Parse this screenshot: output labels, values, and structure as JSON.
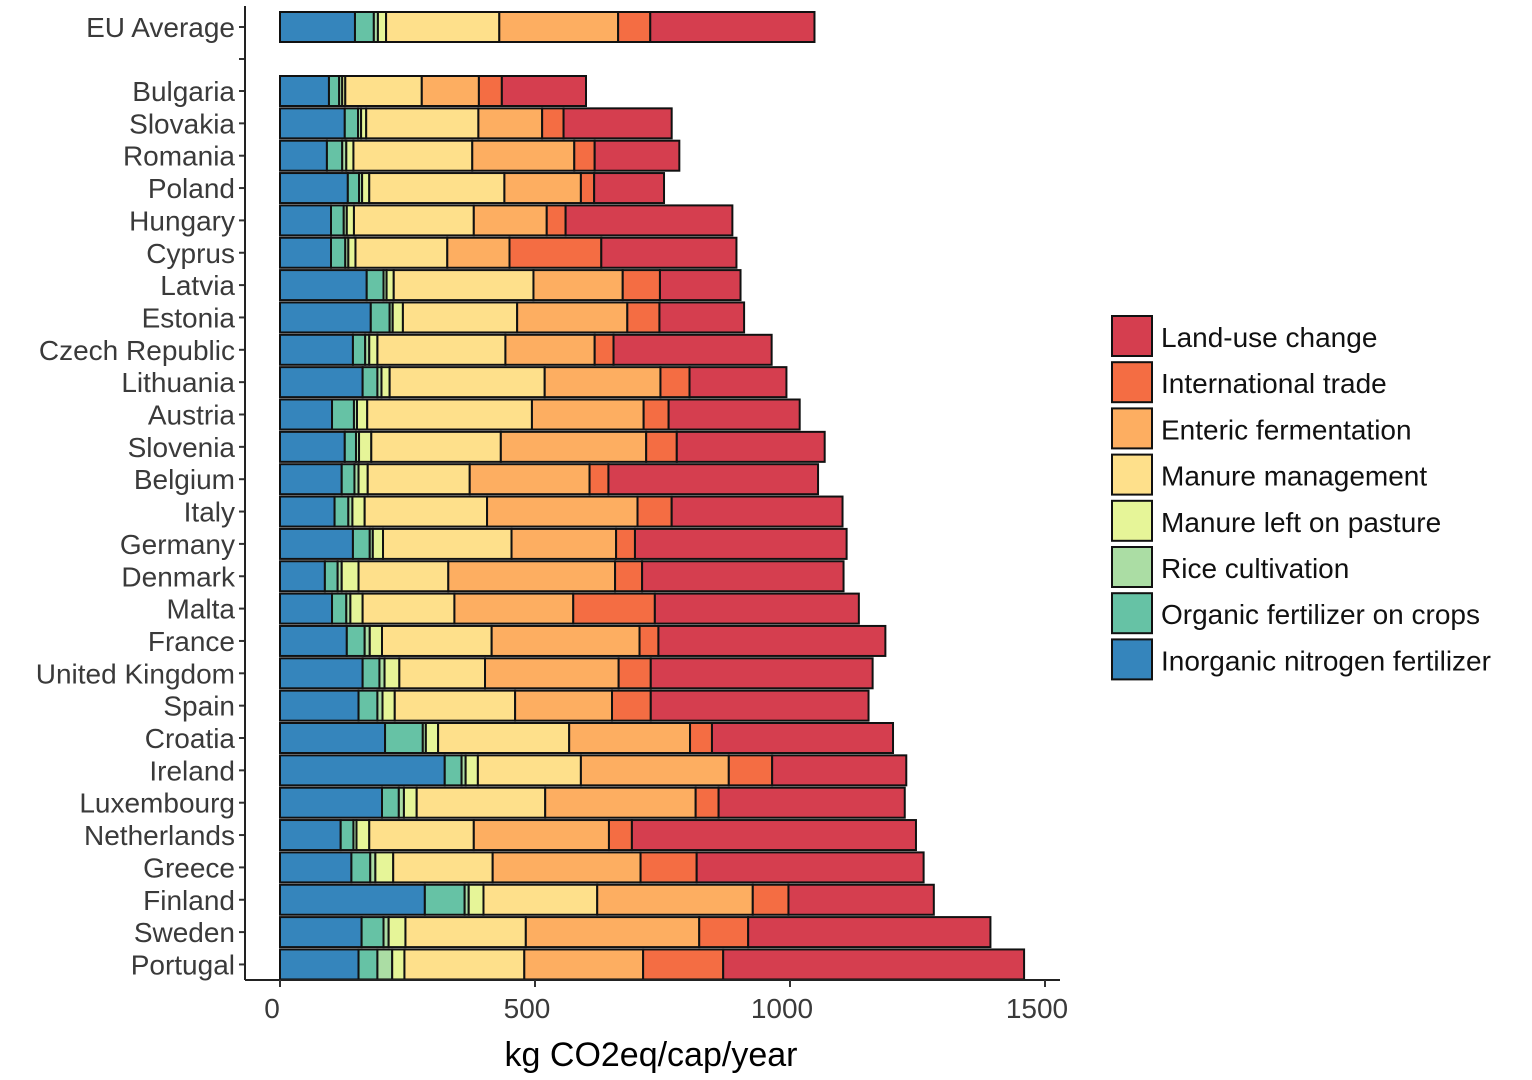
{
  "chart_data": {
    "type": "bar",
    "orientation": "horizontal",
    "stacked": true,
    "title": "",
    "xlabel": "kg CO2eq/cap/year",
    "ylabel": "",
    "xlim": [
      0,
      1600
    ],
    "xticks": [
      0,
      500,
      1000,
      1500
    ],
    "xtick_labels": [
      "0",
      "500",
      "1000",
      "1500"
    ],
    "grid": false,
    "legend_position": "right",
    "series": [
      {
        "name": "Inorganic nitrogen fertilizer",
        "color": "#3585bc"
      },
      {
        "name": "Organic fertilizer on crops",
        "color": "#66c2a5"
      },
      {
        "name": "Rice cultivation",
        "color": "#abdda4"
      },
      {
        "name": "Manure left on pasture",
        "color": "#e6f598"
      },
      {
        "name": "Manure management",
        "color": "#fee08b"
      },
      {
        "name": "Enteric fermentation",
        "color": "#fdae61"
      },
      {
        "name": "International trade",
        "color": "#f46d43"
      },
      {
        "name": "Land-use change",
        "color": "#d53e4f"
      }
    ],
    "legend_order": [
      "Land-use change",
      "International trade",
      "Enteric fermentation",
      "Manure management",
      "Manure left on pasture",
      "Rice cultivation",
      "Organic fertilizer on crops",
      "Inorganic nitrogen fertilizer"
    ],
    "categories": [
      "EU Average",
      "Bulgaria",
      "Slovakia",
      "Romania",
      "Poland",
      "Hungary",
      "Cyprus",
      "Latvia",
      "Estonia",
      "Czech Republic",
      "Lithuania",
      "Austria",
      "Slovenia",
      "Belgium",
      "Italy",
      "Germany",
      "Denmark",
      "Malta",
      "France",
      "United Kingdom",
      "Spain",
      "Croatia",
      "Ireland",
      "Luxembourg",
      "Netherlands",
      "Greece",
      "Finland",
      "Sweden",
      "Portugal"
    ],
    "values": {
      "EU Average": [
        147,
        37,
        8,
        16,
        222,
        233,
        63,
        322
      ],
      "Bulgaria": [
        96,
        20,
        6,
        6,
        150,
        112,
        45,
        165
      ],
      "Slovakia": [
        127,
        26,
        6,
        10,
        220,
        125,
        42,
        212
      ],
      "Romania": [
        92,
        30,
        8,
        14,
        233,
        200,
        40,
        166
      ],
      "Poland": [
        133,
        22,
        6,
        14,
        265,
        150,
        26,
        137
      ],
      "Hungary": [
        100,
        25,
        6,
        14,
        235,
        143,
        37,
        327
      ],
      "Cyprus": [
        100,
        28,
        6,
        14,
        180,
        122,
        180,
        265
      ],
      "Latvia": [
        170,
        33,
        6,
        14,
        274,
        175,
        73,
        158
      ],
      "Estonia": [
        178,
        37,
        6,
        20,
        224,
        216,
        63,
        166
      ],
      "Czech Republic": [
        143,
        24,
        8,
        16,
        251,
        175,
        37,
        310
      ],
      "Lithuania": [
        162,
        29,
        8,
        16,
        304,
        227,
        57,
        190
      ],
      "Austria": [
        102,
        43,
        6,
        20,
        323,
        219,
        49,
        257
      ],
      "Slovenia": [
        127,
        22,
        6,
        24,
        254,
        285,
        60,
        290
      ],
      "Belgium": [
        121,
        25,
        8,
        18,
        200,
        235,
        37,
        411
      ],
      "Italy": [
        107,
        27,
        8,
        24,
        240,
        295,
        67,
        335
      ],
      "Germany": [
        143,
        33,
        6,
        20,
        252,
        205,
        37,
        415
      ],
      "Denmark": [
        88,
        25,
        8,
        33,
        176,
        327,
        53,
        395
      ],
      "Malta": [
        102,
        28,
        8,
        24,
        180,
        233,
        160,
        400
      ],
      "France": [
        131,
        35,
        10,
        24,
        215,
        290,
        37,
        445
      ],
      "United Kingdom": [
        162,
        33,
        10,
        29,
        168,
        262,
        63,
        435
      ],
      "Spain": [
        154,
        37,
        10,
        24,
        236,
        190,
        76,
        427
      ],
      "Croatia": [
        206,
        74,
        6,
        24,
        257,
        237,
        43,
        355
      ],
      "Ireland": [
        323,
        33,
        8,
        24,
        202,
        290,
        85,
        263
      ],
      "Luxembourg": [
        200,
        33,
        10,
        25,
        252,
        295,
        45,
        365
      ],
      "Netherlands": [
        119,
        25,
        6,
        25,
        205,
        265,
        45,
        557
      ],
      "Greece": [
        140,
        37,
        10,
        35,
        195,
        290,
        110,
        445
      ],
      "Finland": [
        284,
        78,
        8,
        29,
        223,
        305,
        70,
        285
      ],
      "Sweden": [
        160,
        43,
        10,
        33,
        236,
        340,
        96,
        475
      ],
      "Portugal": [
        154,
        37,
        29,
        24,
        235,
        233,
        157,
        590
      ]
    }
  }
}
